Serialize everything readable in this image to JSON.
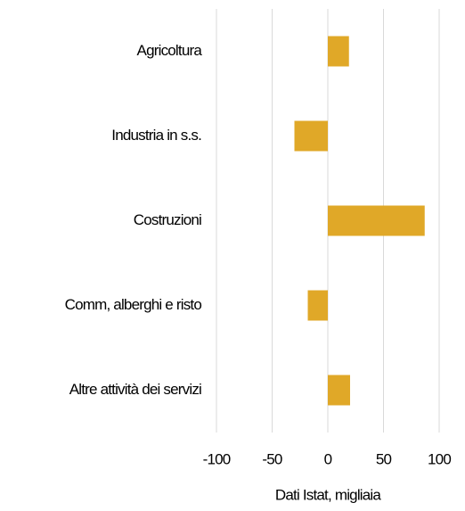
{
  "chart_data": {
    "type": "bar",
    "orientation": "horizontal",
    "x_label": "Dati Istat, migliaia",
    "categories": [
      "Agricoltura",
      "Industria in s.s.",
      "Costruzioni",
      "Comm, alberghi e risto",
      "Altre attività dei servizi"
    ],
    "values": [
      19,
      -30,
      87,
      -18,
      20
    ],
    "color": "#e0a828",
    "xlim": [
      -100,
      100
    ],
    "xticks": [
      -100,
      -50,
      0,
      50,
      100
    ],
    "grid": true
  }
}
